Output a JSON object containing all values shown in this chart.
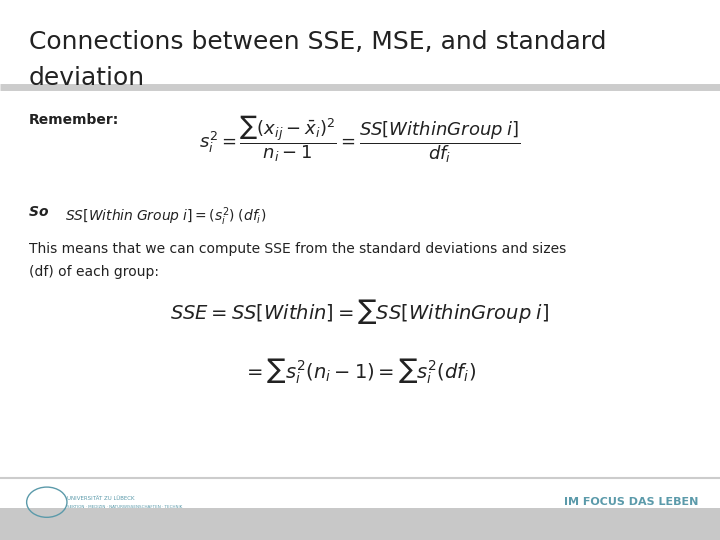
{
  "title_line1": "Connections between SSE, MSE, and standard",
  "title_line2": "deviation",
  "title_fontsize": 18,
  "title_color": "#222222",
  "bg_color": "#ffffff",
  "separator_color": "#cccccc",
  "footer_bar_color": "#c8c8c8",
  "remember_label": "Remember:",
  "formula1": "$s_i^2 = \\dfrac{\\sum(x_{ij} - \\bar{x}_i)^2}{n_i - 1} = \\dfrac{SS[\\mathit{WithinGroup}\\; i]}{df_i}$",
  "so_text_plain": "So  ",
  "so_text_math": "$SS[\\mathit{Within\\; Group}\\; i] = (s_i^2)\\; (df_i)$",
  "this_means_line1": "This means that we can compute SSE from the standard deviations and sizes",
  "this_means_line2": "(df) of each group:",
  "formula2": "$SSE = SS[\\mathit{Within}] = \\sum SS[\\mathit{WithinGroup}\\; i]$",
  "formula3": "$= \\sum s_i^2(n_i - 1) = \\sum s_i^2(df_i)$",
  "footer_text": "IM FOCUS DAS LEBEN",
  "footer_color": "#5b9aaa"
}
